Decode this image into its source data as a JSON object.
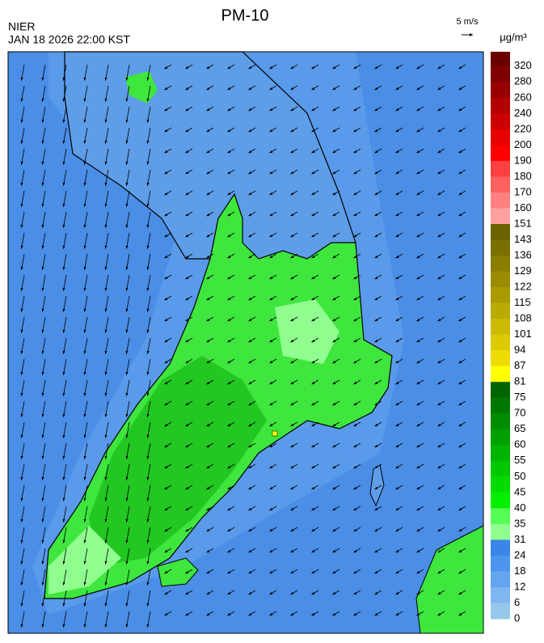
{
  "header": {
    "title": "PM-10",
    "agency": "NIER",
    "timestamp": "JAN 18 2026 22:00 KST",
    "wind_scale": "5 m/s",
    "unit": "μg/m³"
  },
  "colorbar": {
    "labels": [
      320,
      280,
      260,
      240,
      220,
      200,
      190,
      180,
      170,
      160,
      151,
      143,
      136,
      129,
      122,
      115,
      108,
      101,
      94,
      87,
      81,
      75,
      70,
      65,
      60,
      55,
      50,
      45,
      40,
      35,
      31,
      24,
      18,
      12,
      6,
      0
    ],
    "colors": [
      "#6b0000",
      "#800000",
      "#990000",
      "#b30000",
      "#cc0000",
      "#e60000",
      "#ff0000",
      "#ff4040",
      "#ff6060",
      "#ff8080",
      "#ffa0a0",
      "#6b6200",
      "#7a7000",
      "#8a7e00",
      "#998c00",
      "#aa9c00",
      "#bbab00",
      "#ccba00",
      "#ddca00",
      "#eedc00",
      "#ffff00",
      "#006400",
      "#007800",
      "#008c00",
      "#00a000",
      "#00b400",
      "#00c800",
      "#00dc00",
      "#00f000",
      "#55ff55",
      "#90ff90",
      "#3a85e8",
      "#4d95ee",
      "#64a5f0",
      "#7fb5f0",
      "#95c8e8"
    ]
  }
}
